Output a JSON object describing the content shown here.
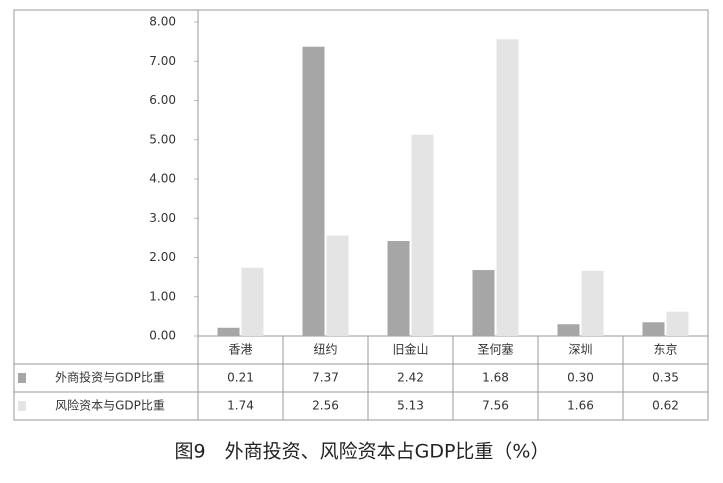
{
  "chart_data": {
    "type": "bar",
    "title": "图9　外商投资、风险资本占GDP比重（%）",
    "categories": [
      "香港",
      "纽约",
      "旧金山",
      "圣何塞",
      "深圳",
      "东京"
    ],
    "series": [
      {
        "name": "外商投资与GDP比重",
        "color": "#a6a6a6",
        "values": [
          0.21,
          7.37,
          2.42,
          1.68,
          0.3,
          0.35
        ],
        "value_labels": [
          "0.21",
          "7.37",
          "2.42",
          "1.68",
          "0.30",
          "0.35"
        ]
      },
      {
        "name": "风险资本与GDP比重",
        "color": "#e4e4e4",
        "values": [
          1.74,
          2.56,
          5.13,
          7.56,
          1.66,
          0.62
        ],
        "value_labels": [
          "1.74",
          "2.56",
          "5.13",
          "7.56",
          "1.66",
          "0.62"
        ]
      }
    ],
    "ylim": [
      0,
      8
    ],
    "yticks": [
      {
        "value": 0,
        "label": "0.00"
      },
      {
        "value": 1,
        "label": "1.00"
      },
      {
        "value": 2,
        "label": "2.00"
      },
      {
        "value": 3,
        "label": "3.00"
      },
      {
        "value": 4,
        "label": "4.00"
      },
      {
        "value": 5,
        "label": "5.00"
      },
      {
        "value": 6,
        "label": "6.00"
      },
      {
        "value": 7,
        "label": "7.00"
      },
      {
        "value": 8,
        "label": "8.00"
      }
    ]
  }
}
